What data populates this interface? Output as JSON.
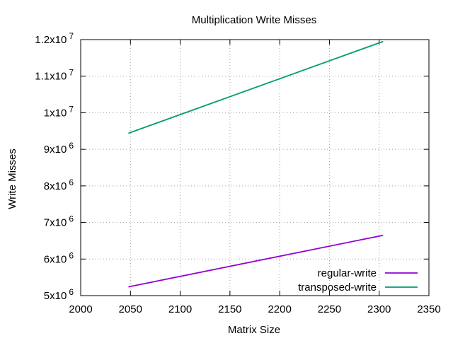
{
  "chart_data": {
    "type": "line",
    "title": "Multiplication Write Misses",
    "xlabel": "Matrix Size",
    "ylabel": "Write Misses",
    "xlim": [
      2000,
      2350
    ],
    "ylim": [
      5000000,
      12000000
    ],
    "x_ticks": [
      2000,
      2050,
      2100,
      2150,
      2200,
      2250,
      2300,
      2350
    ],
    "y_ticks": [
      {
        "value": 5000000,
        "mantissa": "5x10",
        "exponent": "6"
      },
      {
        "value": 6000000,
        "mantissa": "6x10",
        "exponent": "6"
      },
      {
        "value": 7000000,
        "mantissa": "7x10",
        "exponent": "6"
      },
      {
        "value": 8000000,
        "mantissa": "8x10",
        "exponent": "6"
      },
      {
        "value": 9000000,
        "mantissa": "9x10",
        "exponent": "6"
      },
      {
        "value": 10000000,
        "mantissa": "1x10",
        "exponent": "7"
      },
      {
        "value": 11000000,
        "mantissa": "1.1x10",
        "exponent": "7"
      },
      {
        "value": 12000000,
        "mantissa": "1.2x10",
        "exponent": "7"
      }
    ],
    "grid": true,
    "legend_position": "bottom-right",
    "series": [
      {
        "name": "regular-write",
        "color": "#9400d3",
        "x": [
          2048,
          2304
        ],
        "y": [
          5240000,
          6650000
        ]
      },
      {
        "name": "transposed-write",
        "color": "#009e73",
        "x": [
          2048,
          2304
        ],
        "y": [
          9440000,
          11950000
        ]
      }
    ]
  }
}
